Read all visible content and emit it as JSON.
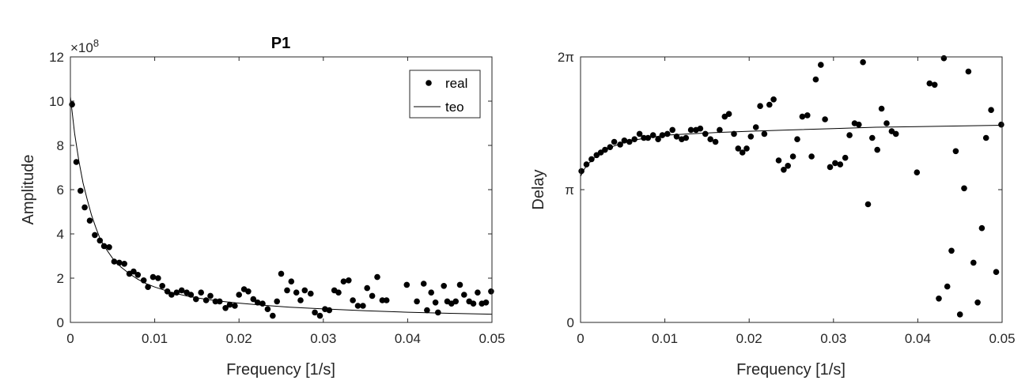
{
  "chart_data": [
    {
      "type": "scatter",
      "title": "P1",
      "xlabel": "Frequency [1/s]",
      "ylabel": "Amplitude",
      "xlim": [
        0,
        0.05
      ],
      "ylim": [
        0,
        12
      ],
      "y_multiplier": "×10",
      "y_multiplier_exponent": "8",
      "x_ticks": [
        0,
        0.01,
        0.02,
        0.03,
        0.04,
        0.05
      ],
      "x_tick_labels": [
        "0",
        "0.01",
        "0.02",
        "0.03",
        "0.04",
        "0.05"
      ],
      "y_ticks": [
        0,
        2,
        4,
        6,
        8,
        10,
        12
      ],
      "y_tick_labels": [
        "0",
        "2",
        "4",
        "6",
        "8",
        "10",
        "12"
      ],
      "grid": false,
      "legend": {
        "placement": "top-right",
        "entries": [
          "real",
          "teo"
        ]
      },
      "series": [
        {
          "name": "real",
          "style": "markers",
          "color": "#000000",
          "points": [
            [
              0.0002,
              9.85
            ],
            [
              0.0007,
              7.25
            ],
            [
              0.0012,
              5.95
            ],
            [
              0.0017,
              5.2
            ],
            [
              0.0023,
              4.6
            ],
            [
              0.0029,
              3.95
            ],
            [
              0.0035,
              3.7
            ],
            [
              0.004,
              3.45
            ],
            [
              0.0046,
              3.4
            ],
            [
              0.0052,
              2.75
            ],
            [
              0.0058,
              2.7
            ],
            [
              0.0064,
              2.65
            ],
            [
              0.007,
              2.2
            ],
            [
              0.0075,
              2.3
            ],
            [
              0.008,
              2.15
            ],
            [
              0.0087,
              1.9
            ],
            [
              0.0092,
              1.6
            ],
            [
              0.0098,
              2.05
            ],
            [
              0.0104,
              2.0
            ],
            [
              0.0109,
              1.65
            ],
            [
              0.0115,
              1.4
            ],
            [
              0.012,
              1.25
            ],
            [
              0.0126,
              1.35
            ],
            [
              0.0132,
              1.45
            ],
            [
              0.0138,
              1.35
            ],
            [
              0.0143,
              1.25
            ],
            [
              0.0149,
              1.05
            ],
            [
              0.0155,
              1.35
            ],
            [
              0.0161,
              1.0
            ],
            [
              0.0166,
              1.2
            ],
            [
              0.0172,
              0.95
            ],
            [
              0.0177,
              0.95
            ],
            [
              0.0184,
              0.65
            ],
            [
              0.0189,
              0.8
            ],
            [
              0.0195,
              0.75
            ],
            [
              0.02,
              1.25
            ],
            [
              0.0206,
              1.5
            ],
            [
              0.0211,
              1.4
            ],
            [
              0.0217,
              1.05
            ],
            [
              0.0222,
              0.9
            ],
            [
              0.0228,
              0.85
            ],
            [
              0.0234,
              0.6
            ],
            [
              0.024,
              0.3
            ],
            [
              0.0245,
              0.95
            ],
            [
              0.025,
              2.2
            ],
            [
              0.0257,
              1.45
            ],
            [
              0.0262,
              1.85
            ],
            [
              0.0268,
              1.35
            ],
            [
              0.0273,
              1.0
            ],
            [
              0.0278,
              1.45
            ],
            [
              0.0285,
              1.3
            ],
            [
              0.029,
              0.45
            ],
            [
              0.0296,
              0.3
            ],
            [
              0.0302,
              0.6
            ],
            [
              0.0307,
              0.55
            ],
            [
              0.0313,
              1.45
            ],
            [
              0.0318,
              1.35
            ],
            [
              0.0324,
              1.85
            ],
            [
              0.033,
              1.9
            ],
            [
              0.0335,
              1.0
            ],
            [
              0.0341,
              0.75
            ],
            [
              0.0347,
              0.75
            ],
            [
              0.0352,
              1.55
            ],
            [
              0.0358,
              1.2
            ],
            [
              0.0364,
              2.05
            ],
            [
              0.037,
              1.0
            ],
            [
              0.0375,
              1.0
            ],
            [
              0.0399,
              1.7
            ],
            [
              0.0411,
              0.95
            ],
            [
              0.0419,
              1.75
            ],
            [
              0.0423,
              0.55
            ],
            [
              0.0428,
              1.35
            ],
            [
              0.0433,
              0.9
            ],
            [
              0.0436,
              0.45
            ],
            [
              0.0443,
              1.65
            ],
            [
              0.0447,
              0.95
            ],
            [
              0.0452,
              0.85
            ],
            [
              0.0457,
              0.95
            ],
            [
              0.0462,
              1.7
            ],
            [
              0.0467,
              1.25
            ],
            [
              0.0473,
              0.95
            ],
            [
              0.0478,
              0.85
            ],
            [
              0.0483,
              1.35
            ],
            [
              0.0488,
              0.85
            ],
            [
              0.0493,
              0.9
            ],
            [
              0.0499,
              1.4
            ]
          ]
        },
        {
          "name": "teo",
          "style": "line",
          "color": "#000000",
          "points": [
            [
              0.0,
              10.2
            ],
            [
              0.0005,
              8.55
            ],
            [
              0.001,
              7.3
            ],
            [
              0.0015,
              6.3
            ],
            [
              0.002,
              5.55
            ],
            [
              0.0025,
              4.85
            ],
            [
              0.003,
              4.3
            ],
            [
              0.0035,
              3.8
            ],
            [
              0.004,
              3.45
            ],
            [
              0.005,
              2.9
            ],
            [
              0.006,
              2.5
            ],
            [
              0.007,
              2.2
            ],
            [
              0.008,
              1.95
            ],
            [
              0.009,
              1.75
            ],
            [
              0.01,
              1.6
            ],
            [
              0.012,
              1.35
            ],
            [
              0.014,
              1.18
            ],
            [
              0.016,
              1.05
            ],
            [
              0.018,
              0.95
            ],
            [
              0.02,
              0.87
            ],
            [
              0.023,
              0.77
            ],
            [
              0.026,
              0.69
            ],
            [
              0.03,
              0.61
            ],
            [
              0.035,
              0.53
            ],
            [
              0.04,
              0.46
            ],
            [
              0.045,
              0.41
            ],
            [
              0.05,
              0.37
            ]
          ]
        }
      ]
    },
    {
      "type": "scatter",
      "title": "",
      "xlabel": "Frequency [1/s]",
      "ylabel": "Delay",
      "xlim": [
        0,
        0.05
      ],
      "ylim_multiples_of_pi": [
        0,
        2
      ],
      "x_ticks": [
        0,
        0.01,
        0.02,
        0.03,
        0.04,
        0.05
      ],
      "x_tick_labels": [
        "0",
        "0.01",
        "0.02",
        "0.03",
        "0.04",
        "0.05"
      ],
      "y_ticks_multiples_of_pi": [
        0,
        1,
        2
      ],
      "y_tick_labels": [
        "0",
        "π",
        "2π"
      ],
      "grid": false,
      "series": [
        {
          "style": "markers",
          "color": "#000000",
          "points_multiples_of_pi": [
            [
              0.0001,
              1.14
            ],
            [
              0.0007,
              1.19
            ],
            [
              0.0013,
              1.23
            ],
            [
              0.0019,
              1.26
            ],
            [
              0.0024,
              1.28
            ],
            [
              0.0029,
              1.3
            ],
            [
              0.0035,
              1.32
            ],
            [
              0.004,
              1.36
            ],
            [
              0.0047,
              1.34
            ],
            [
              0.0052,
              1.37
            ],
            [
              0.0058,
              1.36
            ],
            [
              0.0064,
              1.38
            ],
            [
              0.007,
              1.42
            ],
            [
              0.0075,
              1.39
            ],
            [
              0.008,
              1.39
            ],
            [
              0.0086,
              1.41
            ],
            [
              0.0092,
              1.38
            ],
            [
              0.0097,
              1.41
            ],
            [
              0.0103,
              1.42
            ],
            [
              0.0109,
              1.45
            ],
            [
              0.0114,
              1.4
            ],
            [
              0.012,
              1.38
            ],
            [
              0.0125,
              1.39
            ],
            [
              0.0131,
              1.45
            ],
            [
              0.0137,
              1.45
            ],
            [
              0.0142,
              1.46
            ],
            [
              0.0148,
              1.42
            ],
            [
              0.0154,
              1.38
            ],
            [
              0.016,
              1.36
            ],
            [
              0.0165,
              1.45
            ],
            [
              0.0171,
              1.55
            ],
            [
              0.0176,
              1.57
            ],
            [
              0.0182,
              1.42
            ],
            [
              0.0187,
              1.31
            ],
            [
              0.0192,
              1.28
            ],
            [
              0.0197,
              1.31
            ],
            [
              0.0202,
              1.4
            ],
            [
              0.0208,
              1.47
            ],
            [
              0.0213,
              1.63
            ],
            [
              0.0218,
              1.42
            ],
            [
              0.0224,
              1.64
            ],
            [
              0.0229,
              1.68
            ],
            [
              0.0235,
              1.22
            ],
            [
              0.0241,
              1.15
            ],
            [
              0.0246,
              1.18
            ],
            [
              0.0252,
              1.25
            ],
            [
              0.0257,
              1.38
            ],
            [
              0.0263,
              1.55
            ],
            [
              0.0269,
              1.56
            ],
            [
              0.0274,
              1.25
            ],
            [
              0.0279,
              1.83
            ],
            [
              0.0285,
              1.94
            ],
            [
              0.029,
              1.53
            ],
            [
              0.0296,
              1.17
            ],
            [
              0.0302,
              1.2
            ],
            [
              0.0308,
              1.19
            ],
            [
              0.0314,
              1.24
            ],
            [
              0.0319,
              1.41
            ],
            [
              0.0325,
              1.5
            ],
            [
              0.033,
              1.49
            ],
            [
              0.0335,
              1.96
            ],
            [
              0.0341,
              0.89
            ],
            [
              0.0346,
              1.39
            ],
            [
              0.0352,
              1.3
            ],
            [
              0.0357,
              1.61
            ],
            [
              0.0363,
              1.5
            ],
            [
              0.0369,
              1.44
            ],
            [
              0.0374,
              1.42
            ],
            [
              0.0399,
              1.13
            ],
            [
              0.0414,
              1.8
            ],
            [
              0.042,
              1.79
            ],
            [
              0.0425,
              0.18
            ],
            [
              0.0431,
              1.99
            ],
            [
              0.0435,
              0.27
            ],
            [
              0.044,
              0.54
            ],
            [
              0.0445,
              1.29
            ],
            [
              0.045,
              0.06
            ],
            [
              0.0455,
              1.01
            ],
            [
              0.046,
              1.89
            ],
            [
              0.0466,
              0.45
            ],
            [
              0.0471,
              0.15
            ],
            [
              0.0476,
              0.71
            ],
            [
              0.0481,
              1.39
            ],
            [
              0.0487,
              1.6
            ],
            [
              0.0493,
              0.38
            ],
            [
              0.0499,
              1.49
            ]
          ]
        },
        {
          "style": "line",
          "color": "#000000",
          "points_multiples_of_pi": [
            [
              0.0,
              1.1
            ],
            [
              0.0005,
              1.16
            ],
            [
              0.001,
              1.2
            ],
            [
              0.0015,
              1.23
            ],
            [
              0.002,
              1.26
            ],
            [
              0.003,
              1.3
            ],
            [
              0.004,
              1.33
            ],
            [
              0.005,
              1.35
            ],
            [
              0.006,
              1.37
            ],
            [
              0.008,
              1.39
            ],
            [
              0.01,
              1.41
            ],
            [
              0.013,
              1.42
            ],
            [
              0.016,
              1.43
            ],
            [
              0.02,
              1.44
            ],
            [
              0.025,
              1.45
            ],
            [
              0.03,
              1.46
            ],
            [
              0.035,
              1.47
            ],
            [
              0.04,
              1.475
            ],
            [
              0.045,
              1.48
            ],
            [
              0.05,
              1.485
            ]
          ]
        }
      ]
    }
  ]
}
